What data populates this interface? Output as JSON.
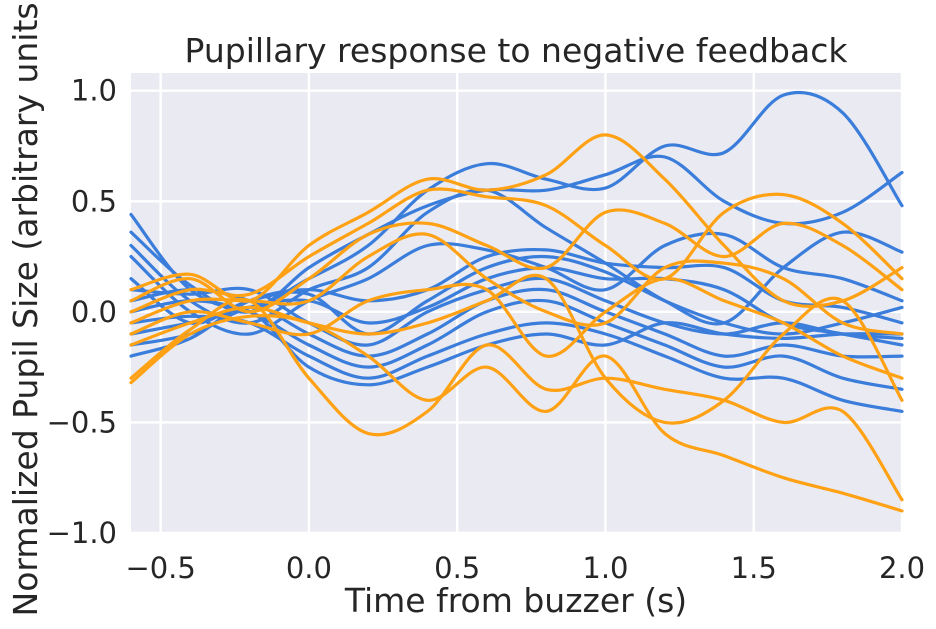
{
  "chart_data": {
    "type": "line",
    "title": "Pupillary response to negative feedback",
    "xlabel": "Time from buzzer (s)",
    "ylabel": "Normalized Pupil Size (arbitrary units)",
    "xlim": [
      -0.6,
      2.0
    ],
    "ylim": [
      -1.0,
      1.08
    ],
    "xticks": [
      -0.5,
      0.0,
      0.5,
      1.0,
      1.5,
      2.0
    ],
    "xtick_labels": [
      "−0.5",
      "0.0",
      "0.5",
      "1.0",
      "1.5",
      "2.0"
    ],
    "yticks": [
      -1.0,
      -0.5,
      0.0,
      0.5,
      1.0
    ],
    "ytick_labels": [
      "−1.0",
      "−0.5",
      "0.0",
      "0.5",
      "1.0"
    ],
    "grid": true,
    "legend": "none",
    "background_color": "#eaeaf2",
    "x": [
      -0.6,
      -0.4,
      -0.2,
      0.0,
      0.2,
      0.4,
      0.6,
      0.8,
      1.0,
      1.2,
      1.4,
      1.6,
      1.8,
      2.0
    ],
    "series": [
      {
        "color": "#3a7ddb",
        "values": [
          0.44,
          0.1,
          0.02,
          0.15,
          0.3,
          0.55,
          0.67,
          0.6,
          0.56,
          0.75,
          0.72,
          0.98,
          0.9,
          0.48
        ]
      },
      {
        "color": "#3a7ddb",
        "values": [
          0.36,
          0.12,
          0.0,
          0.2,
          0.35,
          0.48,
          0.55,
          0.55,
          0.62,
          0.7,
          0.5,
          0.4,
          0.45,
          0.63
        ]
      },
      {
        "color": "#3a7ddb",
        "values": [
          0.3,
          0.05,
          -0.05,
          0.1,
          0.2,
          0.45,
          0.55,
          0.38,
          0.22,
          0.05,
          -0.05,
          0.2,
          0.36,
          0.27
        ]
      },
      {
        "color": "#3a7ddb",
        "values": [
          0.25,
          0.0,
          -0.1,
          0.05,
          0.15,
          0.3,
          0.28,
          0.2,
          0.1,
          0.3,
          0.35,
          0.2,
          0.15,
          0.05
        ]
      },
      {
        "color": "#3a7ddb",
        "values": [
          0.15,
          -0.05,
          0.05,
          0.08,
          -0.1,
          0.05,
          0.2,
          0.25,
          0.18,
          0.05,
          -0.05,
          -0.1,
          -0.05,
          0.02
        ]
      },
      {
        "color": "#3a7ddb",
        "values": [
          0.1,
          0.08,
          0.1,
          -0.05,
          -0.15,
          0.0,
          0.1,
          0.15,
          0.05,
          -0.05,
          -0.1,
          -0.05,
          -0.1,
          -0.12
        ]
      },
      {
        "color": "#3a7ddb",
        "values": [
          0.05,
          0.1,
          0.05,
          -0.1,
          -0.2,
          -0.1,
          0.05,
          0.1,
          0.0,
          -0.1,
          -0.2,
          -0.15,
          -0.2,
          -0.2
        ]
      },
      {
        "color": "#3a7ddb",
        "values": [
          0.0,
          0.05,
          0.0,
          -0.15,
          -0.25,
          -0.15,
          0.0,
          0.05,
          -0.05,
          -0.15,
          -0.25,
          -0.2,
          -0.3,
          -0.35
        ]
      },
      {
        "color": "#3a7ddb",
        "values": [
          -0.05,
          -0.02,
          -0.05,
          -0.2,
          -0.3,
          -0.2,
          -0.1,
          -0.05,
          -0.1,
          -0.2,
          -0.3,
          -0.3,
          -0.4,
          -0.45
        ]
      },
      {
        "color": "#3a7ddb",
        "values": [
          -0.1,
          -0.05,
          0.0,
          -0.25,
          -0.33,
          -0.25,
          -0.15,
          -0.1,
          -0.15,
          -0.05,
          -0.1,
          -0.12,
          -0.1,
          -0.1
        ]
      },
      {
        "color": "#3a7ddb",
        "values": [
          -0.15,
          -0.1,
          0.02,
          0.05,
          -0.05,
          0.02,
          0.15,
          0.2,
          0.15,
          0.15,
          0.1,
          -0.05,
          -0.1,
          -0.15
        ]
      },
      {
        "color": "#3a7ddb",
        "values": [
          -0.2,
          -0.12,
          0.05,
          0.1,
          0.05,
          0.1,
          0.25,
          0.28,
          0.22,
          0.2,
          0.2,
          0.05,
          0.02,
          -0.05
        ]
      },
      {
        "color": "#ffa114",
        "values": [
          0.1,
          0.17,
          0.05,
          0.3,
          0.45,
          0.6,
          0.55,
          0.62,
          0.8,
          0.6,
          0.3,
          0.05,
          0.05,
          0.2
        ]
      },
      {
        "color": "#ffa114",
        "values": [
          0.0,
          0.1,
          0.08,
          0.25,
          0.4,
          0.55,
          0.52,
          0.48,
          0.3,
          0.15,
          0.45,
          0.53,
          0.4,
          0.15
        ]
      },
      {
        "color": "#ffa114",
        "values": [
          0.05,
          0.15,
          0.0,
          0.15,
          0.35,
          0.4,
          0.3,
          0.2,
          0.45,
          0.4,
          0.25,
          0.4,
          0.3,
          0.1
        ]
      },
      {
        "color": "#ffa114",
        "values": [
          -0.05,
          0.05,
          0.05,
          0.05,
          0.25,
          0.35,
          0.15,
          0.0,
          -0.05,
          0.2,
          0.22,
          0.15,
          -0.05,
          -0.1
        ]
      },
      {
        "color": "#ffa114",
        "values": [
          -0.1,
          0.0,
          -0.05,
          -0.1,
          0.05,
          0.1,
          0.1,
          -0.2,
          0.0,
          0.15,
          0.05,
          -0.05,
          -0.2,
          -0.3
        ]
      },
      {
        "color": "#ffa114",
        "values": [
          -0.15,
          -0.05,
          0.02,
          -0.05,
          -0.1,
          -0.05,
          0.05,
          0.15,
          -0.3,
          -0.5,
          -0.4,
          -0.1,
          0.05,
          -0.4
        ]
      },
      {
        "color": "#ffa114",
        "values": [
          -0.3,
          -0.08,
          0.05,
          -0.3,
          -0.55,
          -0.45,
          -0.15,
          -0.35,
          -0.3,
          -0.35,
          -0.4,
          -0.5,
          -0.45,
          -0.85
        ]
      },
      {
        "color": "#ffa114",
        "values": [
          -0.32,
          -0.1,
          -0.02,
          -0.05,
          -0.2,
          -0.4,
          -0.25,
          -0.45,
          -0.2,
          -0.55,
          -0.65,
          -0.75,
          -0.82,
          -0.9
        ]
      }
    ]
  }
}
